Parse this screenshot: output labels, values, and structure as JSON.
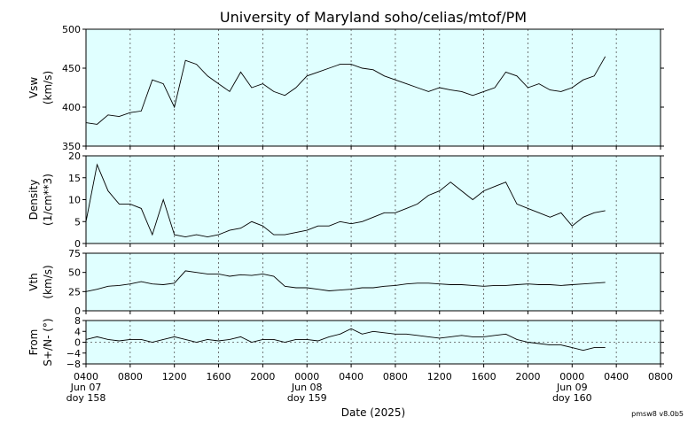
{
  "chart_data": {
    "type": "line",
    "title": "University of Maryland  soho/celias/mtof/PM",
    "xlabel": "Date (2025)",
    "footnote": "pmsw8 v8.0b5",
    "xlim": [
      "2025-06-07 04:00",
      "2025-06-09 08:00"
    ],
    "xticks": [
      {
        "value": "2025-06-07 04:00",
        "label": "0400"
      },
      {
        "value": "2025-06-07 08:00",
        "label": "0800"
      },
      {
        "value": "2025-06-07 12:00",
        "label": "1200"
      },
      {
        "value": "2025-06-07 16:00",
        "label": "1600"
      },
      {
        "value": "2025-06-07 20:00",
        "label": "2000"
      },
      {
        "value": "2025-06-08 00:00",
        "label": "0000"
      },
      {
        "value": "2025-06-08 04:00",
        "label": "0400"
      },
      {
        "value": "2025-06-08 08:00",
        "label": "0800"
      },
      {
        "value": "2025-06-08 12:00",
        "label": "1200"
      },
      {
        "value": "2025-06-08 16:00",
        "label": "1600"
      },
      {
        "value": "2025-06-08 20:00",
        "label": "2000"
      },
      {
        "value": "2025-06-09 00:00",
        "label": "0000"
      },
      {
        "value": "2025-06-09 04:00",
        "label": "0400"
      },
      {
        "value": "2025-06-09 08:00",
        "label": "0800"
      }
    ],
    "date_labels": [
      {
        "x": "2025-06-07 04:00",
        "lines": [
          "Jun 07",
          "doy 158"
        ]
      },
      {
        "x": "2025-06-08 00:00",
        "lines": [
          "Jun 08",
          "doy 159"
        ]
      },
      {
        "x": "2025-06-09 00:00",
        "lines": [
          "Jun 09",
          "doy 160"
        ]
      }
    ],
    "x": [
      "2025-06-07 04:00",
      "2025-06-07 05:00",
      "2025-06-07 06:00",
      "2025-06-07 07:00",
      "2025-06-07 08:00",
      "2025-06-07 09:00",
      "2025-06-07 10:00",
      "2025-06-07 11:00",
      "2025-06-07 12:00",
      "2025-06-07 13:00",
      "2025-06-07 14:00",
      "2025-06-07 15:00",
      "2025-06-07 16:00",
      "2025-06-07 17:00",
      "2025-06-07 18:00",
      "2025-06-07 19:00",
      "2025-06-07 20:00",
      "2025-06-07 21:00",
      "2025-06-07 22:00",
      "2025-06-07 23:00",
      "2025-06-08 00:00",
      "2025-06-08 01:00",
      "2025-06-08 02:00",
      "2025-06-08 03:00",
      "2025-06-08 04:00",
      "2025-06-08 05:00",
      "2025-06-08 06:00",
      "2025-06-08 07:00",
      "2025-06-08 08:00",
      "2025-06-08 09:00",
      "2025-06-08 10:00",
      "2025-06-08 11:00",
      "2025-06-08 12:00",
      "2025-06-08 13:00",
      "2025-06-08 14:00",
      "2025-06-08 15:00",
      "2025-06-08 16:00",
      "2025-06-08 17:00",
      "2025-06-08 18:00",
      "2025-06-08 19:00",
      "2025-06-08 20:00",
      "2025-06-08 21:00",
      "2025-06-08 22:00",
      "2025-06-08 23:00",
      "2025-06-09 00:00",
      "2025-06-09 01:00",
      "2025-06-09 02:00",
      "2025-06-09 03:00"
    ],
    "background": "#e0ffff",
    "grid": true,
    "panels": [
      {
        "ylabel": [
          "Vsw",
          "(km/s)"
        ],
        "ylim": [
          350,
          500
        ],
        "yticks": [
          350,
          400,
          450,
          500
        ],
        "color": "#000000",
        "values": [
          380,
          378,
          390,
          388,
          393,
          395,
          435,
          430,
          400,
          460,
          455,
          440,
          430,
          420,
          445,
          425,
          430,
          420,
          415,
          425,
          440,
          445,
          450,
          455,
          455,
          450,
          448,
          440,
          435,
          430,
          425,
          420,
          425,
          422,
          420,
          415,
          420,
          425,
          445,
          440,
          425,
          430,
          422,
          420,
          425,
          435,
          440,
          465
        ]
      },
      {
        "ylabel": [
          "Density",
          "(1/cm**3)"
        ],
        "ylim": [
          0,
          20
        ],
        "yticks": [
          0,
          5,
          10,
          15,
          20
        ],
        "color": "#000000",
        "values": [
          5,
          18,
          12,
          9,
          9,
          8,
          2,
          10,
          2,
          1.5,
          2,
          1.5,
          2,
          3,
          3.5,
          5,
          4,
          2,
          2,
          2.5,
          3,
          4,
          4,
          5,
          4.5,
          5,
          6,
          7,
          7,
          8,
          9,
          11,
          12,
          14,
          12,
          10,
          12,
          13,
          14,
          9,
          8,
          7,
          6,
          7,
          4,
          6,
          7,
          7.5
        ]
      },
      {
        "ylabel": [
          "Vth",
          "(km/s)"
        ],
        "ylim": [
          0,
          75
        ],
        "yticks": [
          0,
          25,
          50,
          75
        ],
        "color": "#000000",
        "values": [
          25,
          28,
          32,
          33,
          35,
          38,
          35,
          34,
          36,
          52,
          50,
          48,
          48,
          45,
          47,
          46,
          48,
          45,
          32,
          30,
          30,
          28,
          26,
          27,
          28,
          30,
          30,
          32,
          33,
          35,
          36,
          36,
          35,
          34,
          34,
          33,
          32,
          33,
          33,
          34,
          35,
          34,
          34,
          33,
          34,
          35,
          36,
          37
        ]
      },
      {
        "ylabel": [
          "From",
          "S+/N- (°)"
        ],
        "ylim": [
          -8,
          8
        ],
        "yticks": [
          {
            "value": -8,
            "label": "−8"
          },
          {
            "value": -4,
            "label": "−4"
          },
          0,
          4,
          8
        ],
        "reference_line": 0,
        "color": "#000000",
        "values": [
          1,
          2,
          1,
          0.5,
          1,
          1,
          0,
          1,
          2,
          1,
          0,
          1,
          0.5,
          1,
          2,
          0,
          1,
          1,
          0,
          1,
          1,
          0.5,
          2,
          3,
          5,
          3,
          4,
          3.5,
          3,
          3,
          2.5,
          2,
          1.5,
          2,
          2.5,
          2,
          2,
          2.5,
          3,
          1,
          0,
          -0.5,
          -1,
          -1,
          -2,
          -3,
          -2,
          -2
        ]
      }
    ]
  }
}
